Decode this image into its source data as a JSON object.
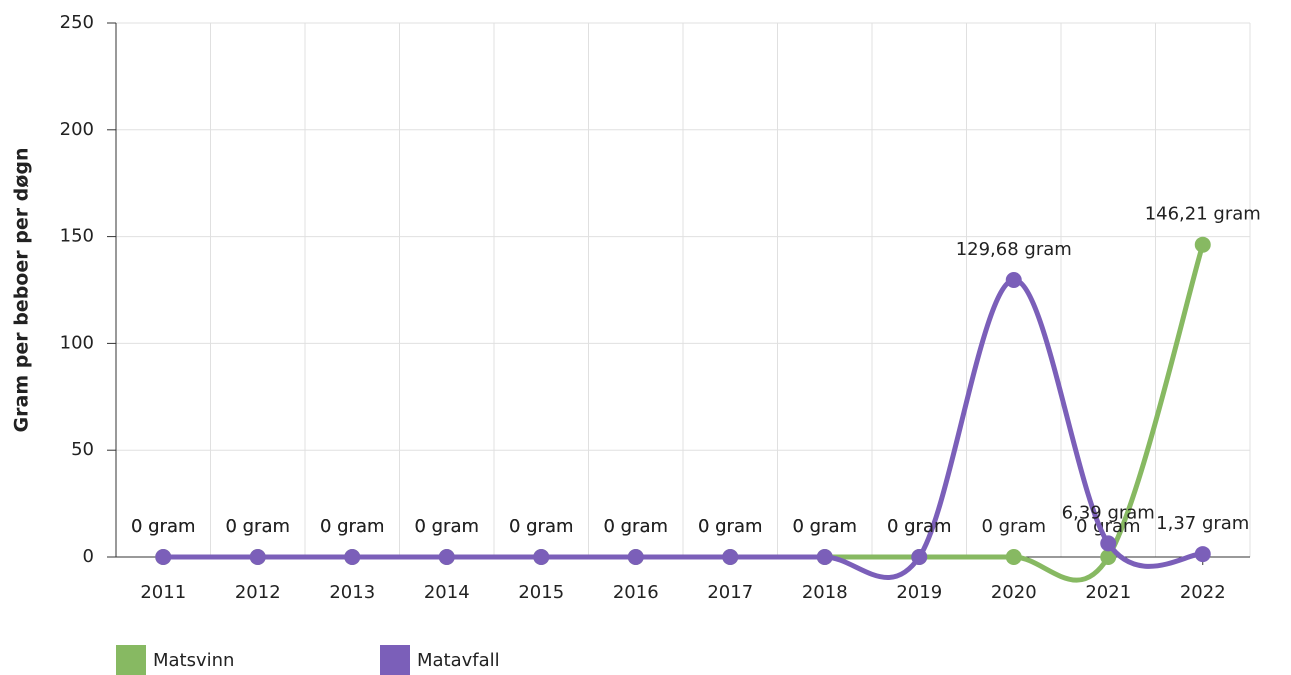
{
  "chart_data": {
    "type": "line",
    "categories": [
      "2011",
      "2012",
      "2013",
      "2014",
      "2015",
      "2016",
      "2017",
      "2018",
      "2019",
      "2020",
      "2021",
      "2022"
    ],
    "series": [
      {
        "name": "Matsvinn",
        "color": "#87b962",
        "values": [
          0,
          0,
          0,
          0,
          0,
          0,
          0,
          0,
          0,
          0,
          0,
          146.21
        ],
        "value_labels": [
          "0 gram",
          "0 gram",
          "0 gram",
          "0 gram",
          "0 gram",
          "0 gram",
          "0 gram",
          "0 gram",
          "0 gram",
          "0 gram",
          "0 gram",
          "146,21 gram"
        ]
      },
      {
        "name": "Matavfall",
        "color": "#7b5fb9",
        "values": [
          0,
          0,
          0,
          0,
          0,
          0,
          0,
          0,
          0,
          129.68,
          6.39,
          1.37
        ],
        "value_labels": [
          "0 gram",
          "0 gram",
          "0 gram",
          "0 gram",
          "0 gram",
          "0 gram",
          "0 gram",
          "0 gram",
          "0 gram",
          "129,68 gram",
          "6,39 gram",
          "1,37 gram"
        ]
      }
    ],
    "y_label": "Gram per beboer per døgn",
    "ylim": [
      0,
      250
    ],
    "yticks": [
      0,
      50,
      100,
      150,
      200,
      250
    ],
    "grid": true
  }
}
